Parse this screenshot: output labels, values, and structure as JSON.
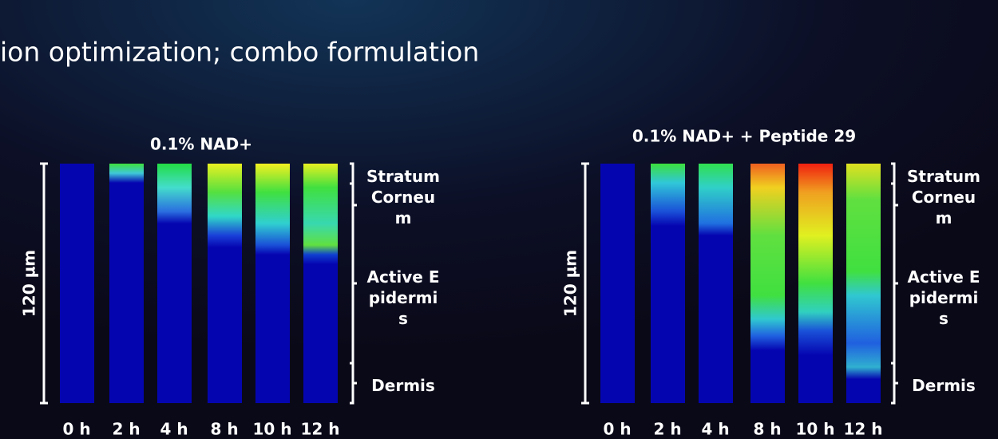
{
  "header": {
    "title": "ion optimization; combo formulation"
  },
  "panels": [
    {
      "title": "0.1% NAD+",
      "y_label": "120 µm",
      "times": [
        "0 h",
        "2 h",
        "4 h",
        "8 h",
        "10 h",
        "12 h"
      ],
      "layers": [
        "Stratum Corneum",
        "Active Epidermis",
        "Dermis"
      ]
    },
    {
      "title": "0.1% NAD+ + Peptide 29",
      "y_label": "120 µm",
      "times": [
        "0 h",
        "2 h",
        "4 h",
        "8 h",
        "10 h",
        "12 h"
      ],
      "layers": [
        "Stratum Corneum",
        "Active Epidermis",
        "Dermis"
      ]
    }
  ]
}
